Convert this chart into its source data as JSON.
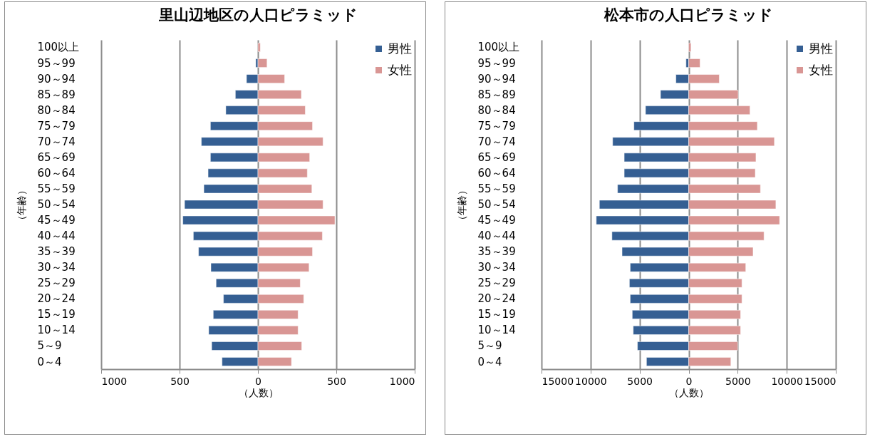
{
  "chart_data": [
    {
      "type": "bar",
      "orientation": "horizontal",
      "title": "里山辺地区の人口ピラミッド",
      "xlabel": "（人数）",
      "ylabel": "（年齢）",
      "categories": [
        "100以上",
        "95～99",
        "90～94",
        "85～89",
        "80～84",
        "75～79",
        "70～74",
        "65～69",
        "60～64",
        "55～59",
        "50～54",
        "45～49",
        "40～44",
        "35～39",
        "30～34",
        "25～29",
        "20～24",
        "15～19",
        "10～14",
        "5～9",
        "0～4"
      ],
      "stacked": true,
      "series": [
        {
          "name": "男性",
          "color": "#355f93",
          "values": [
            null,
            -14,
            -73,
            -144,
            -205,
            -303,
            -361,
            -303,
            -318,
            -345,
            -468,
            -479,
            -412,
            -379,
            -300,
            -267,
            -220,
            -285,
            -314,
            -295,
            -229
          ]
        },
        {
          "name": "女性",
          "color": "#d99694",
          "values": [
            15,
            58,
            170,
            277,
            302,
            348,
            415,
            330,
            315,
            344,
            415,
            491,
            411,
            348,
            326,
            270,
            292,
            256,
            256,
            279,
            214
          ]
        }
      ],
      "xlim": [
        -1000,
        1000
      ],
      "xticks": [
        {
          "value": -1000,
          "label": "1000"
        },
        {
          "value": -500,
          "label": "500"
        },
        0,
        500,
        1000
      ],
      "grid": "x",
      "legend": "top right"
    },
    {
      "type": "bar",
      "orientation": "horizontal",
      "title": "松本市の人口ピラミッド",
      "xlabel": "（人数）",
      "ylabel": "（年齢）",
      "categories": [
        "100以上",
        "95～99",
        "90～94",
        "85～89",
        "80～84",
        "75～79",
        "70～74",
        "65～69",
        "60～64",
        "55～59",
        "50～54",
        "45～49",
        "40～44",
        "35～39",
        "30～34",
        "25～29",
        "20～24",
        "15～19",
        "10～14",
        "5～9",
        "0～4"
      ],
      "stacked": true,
      "series": [
        {
          "name": "男性",
          "color": "#355f93",
          "values": [
            null,
            -270,
            -1300,
            -2870,
            -4400,
            -5580,
            -7750,
            -6570,
            -6570,
            -7250,
            -9100,
            -9420,
            -7820,
            -6790,
            -5960,
            -6040,
            -5960,
            -5750,
            -5650,
            -5220,
            -4300
          ]
        },
        {
          "name": "女性",
          "color": "#d99694",
          "values": [
            240,
            1160,
            3120,
            5050,
            6250,
            7000,
            8740,
            6860,
            6790,
            7320,
            8890,
            9270,
            7680,
            6570,
            5820,
            5430,
            5430,
            5290,
            5290,
            5000,
            4300
          ]
        }
      ],
      "xlim": [
        -15000,
        15000
      ],
      "xticks": [
        {
          "value": -15000,
          "label": "15000"
        },
        {
          "value": -10000,
          "label": "10000"
        },
        {
          "value": -5000,
          "label": "5000"
        },
        0,
        5000,
        10000,
        15000
      ],
      "grid": "x",
      "legend": "top right"
    }
  ]
}
